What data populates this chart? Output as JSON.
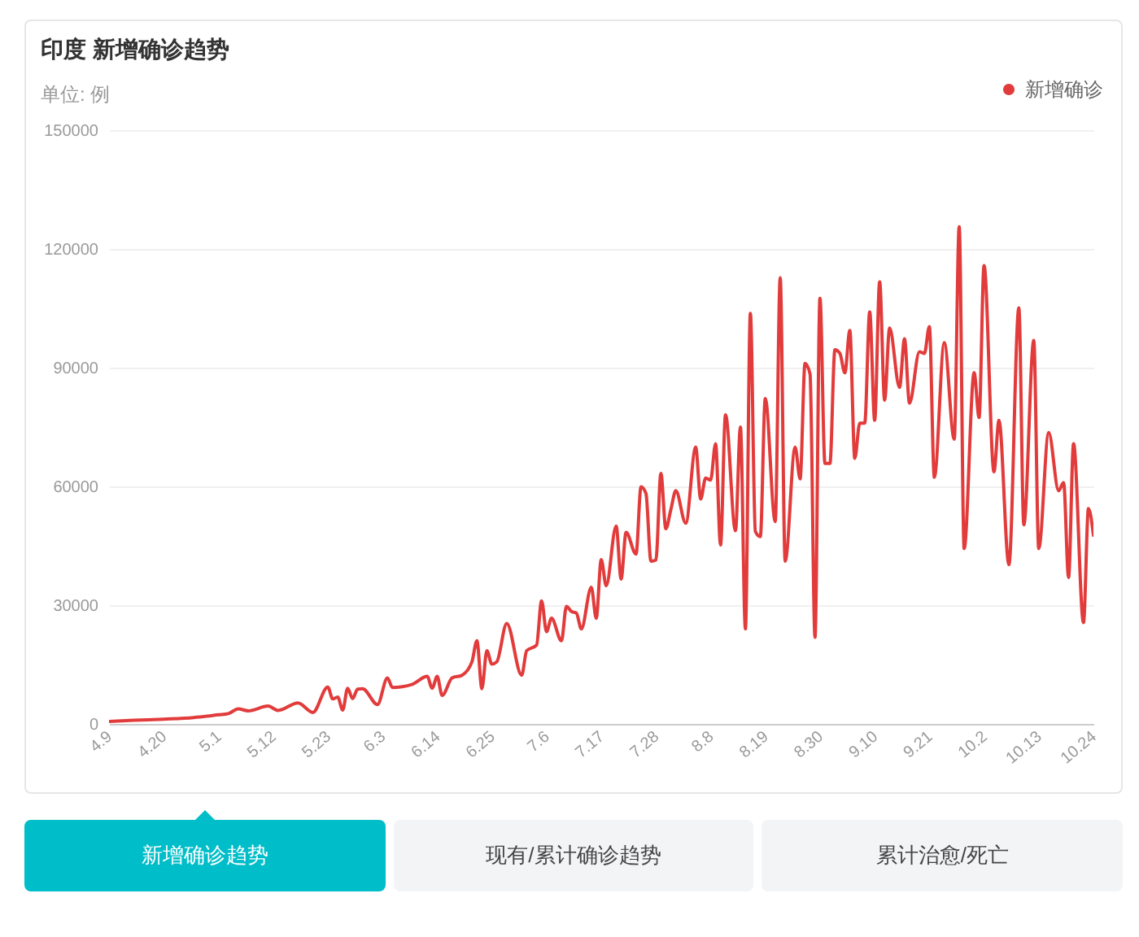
{
  "chart_data": {
    "type": "line",
    "title": "印度 新增确诊趋势",
    "subtitle": "单位: 例",
    "annotations": [
      "新增确诊趋势",
      "现有/累计确诊趋势",
      "累计治愈/死亡"
    ],
    "x": [
      "--04-09",
      "--04-14",
      "--04-20",
      "--04-26",
      "--05-01",
      "--05-03",
      "--05-05",
      "--05-07",
      "--05-11",
      "--05-13",
      "--05-17",
      "--05-20",
      "--05-23",
      "--05-24",
      "--05-25",
      "--05-26",
      "--05-27",
      "--05-28",
      "--05-29",
      "--05-30",
      "--06-02",
      "--06-04",
      "--06-05",
      "--06-09",
      "--06-12",
      "--06-13",
      "--06-14",
      "--06-15",
      "--06-17",
      "--06-19",
      "--06-21",
      "--06-22",
      "--06-23",
      "--06-24",
      "--06-25",
      "--06-26",
      "--06-28",
      "--07-01",
      "--07-02",
      "--07-04",
      "--07-05",
      "--07-06",
      "--07-07",
      "--07-09",
      "--07-10",
      "--07-11",
      "--07-12",
      "--07-13",
      "--07-15",
      "--07-16",
      "--07-17",
      "--07-18",
      "--07-20",
      "--07-21",
      "--07-22",
      "--07-24",
      "--07-25",
      "--07-26",
      "--07-27",
      "--07-28",
      "--07-29",
      "--07-30",
      "--07-31",
      "--08-01",
      "--08-03",
      "--08-05",
      "--08-06",
      "--08-07",
      "--08-08",
      "--08-09",
      "--08-10",
      "--08-11",
      "--08-13",
      "--08-14",
      "--08-15",
      "--08-16",
      "--08-17",
      "--08-18",
      "--08-19",
      "--08-21",
      "--08-22",
      "--08-23",
      "--08-25",
      "--08-26",
      "--08-27",
      "--08-28",
      "--08-29",
      "--08-30",
      "--08-31",
      "--09-01",
      "--09-02",
      "--09-03",
      "--09-04",
      "--09-05",
      "--09-06",
      "--09-07",
      "--09-08",
      "--09-09",
      "--09-10",
      "--09-11",
      "--09-12",
      "--09-13",
      "--09-15",
      "--09-16",
      "--09-17",
      "--09-19",
      "--09-20",
      "--09-21",
      "--09-22",
      "--09-24",
      "--09-26",
      "--09-27",
      "--09-28",
      "--09-30",
      "--10-01",
      "--10-02",
      "--10-04",
      "--10-05",
      "--10-07",
      "--10-09",
      "--10-10",
      "--10-12",
      "--10-13",
      "--10-15",
      "--10-17",
      "--10-18",
      "--10-19",
      "--10-20",
      "--10-22",
      "--10-23",
      "--10-24"
    ],
    "series": [
      {
        "name": "新增确诊",
        "color": "#e23b3b",
        "values": [
          600,
          900,
          1200,
          1600,
          2300,
          2600,
          3800,
          3300,
          4500,
          3400,
          5300,
          2900,
          9300,
          6300,
          6800,
          3500,
          9000,
          6400,
          8800,
          8900,
          4900,
          11600,
          9200,
          10000,
          12000,
          9000,
          12000,
          7200,
          11600,
          12300,
          15700,
          21000,
          8900,
          18500,
          15100,
          15700,
          25400,
          12300,
          18500,
          19900,
          31100,
          23300,
          26700,
          21000,
          29700,
          28400,
          28000,
          24000,
          34500,
          26700,
          41500,
          34900,
          50000,
          36600,
          48400,
          42900,
          59900,
          58200,
          41100,
          41400,
          63300,
          49300,
          54100,
          58900,
          50700,
          69900,
          56800,
          62100,
          61600,
          70800,
          45200,
          78100,
          48800,
          75000,
          24000,
          103700,
          48600,
          47300,
          82200,
          51100,
          112700,
          41100,
          69900,
          61900,
          91100,
          88400,
          21900,
          107500,
          65800,
          65800,
          94500,
          93600,
          88700,
          99400,
          67100,
          76000,
          76000,
          104100,
          76700,
          111700,
          81800,
          100000,
          85000,
          97300,
          81000,
          94000,
          93600,
          100400,
          62300,
          96300,
          71900,
          125600,
          44300,
          88700,
          77400,
          115800,
          63700,
          76700,
          40200,
          105100,
          50300,
          96900,
          44300,
          73600,
          58900,
          61000,
          37000,
          70800,
          25600,
          54400,
          47600
        ]
      }
    ],
    "xlim": [
      "--04-09",
      "--10-24"
    ],
    "xticks": [
      {
        "value": "--04-09",
        "label": "4.9"
      },
      {
        "value": "--04-20",
        "label": "4.20"
      },
      {
        "value": "--05-01",
        "label": "5.1"
      },
      {
        "value": "--05-12",
        "label": "5.12"
      },
      {
        "value": "--05-23",
        "label": "5.23"
      },
      {
        "value": "--06-03",
        "label": "6.3"
      },
      {
        "value": "--06-14",
        "label": "6.14"
      },
      {
        "value": "--06-25",
        "label": "6.25"
      },
      {
        "value": "--07-06",
        "label": "7.6"
      },
      {
        "value": "--07-17",
        "label": "7.17"
      },
      {
        "value": "--07-28",
        "label": "7.28"
      },
      {
        "value": "--08-08",
        "label": "8.8"
      },
      {
        "value": "--08-19",
        "label": "8.19"
      },
      {
        "value": "--08-30",
        "label": "8.30"
      },
      {
        "value": "--09-10",
        "label": "9.10"
      },
      {
        "value": "--09-21",
        "label": "9.21"
      },
      {
        "value": "--10-02",
        "label": "10.2"
      },
      {
        "value": "--10-13",
        "label": "10.13"
      },
      {
        "value": "--10-24",
        "label": "10.24"
      }
    ],
    "ylim": [
      0,
      150000
    ],
    "yticks": [
      0,
      30000,
      60000,
      90000,
      120000,
      150000
    ],
    "grid": "y",
    "legend": "top right"
  }
}
